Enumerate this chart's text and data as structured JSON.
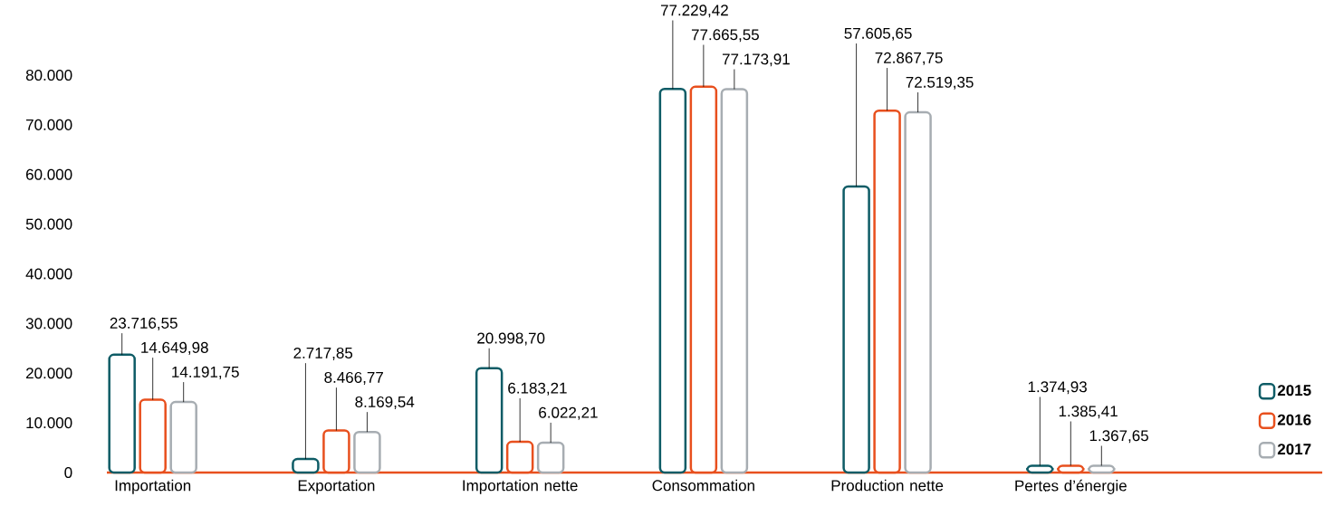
{
  "chart_data": {
    "type": "bar",
    "categories": [
      "Importation",
      "Exportation",
      "Importation nette",
      "Consommation",
      "Production nette",
      "Pertes d’énergie"
    ],
    "series": [
      {
        "name": "2015",
        "color": "#0e5c66",
        "values": [
          23716.55,
          2717.85,
          20998.7,
          77229.42,
          57605.65,
          1374.93
        ],
        "value_labels": [
          "23.716,55",
          "2.717,85",
          "20.998,70",
          "77.229,42",
          "57.605,65",
          "1.374,93"
        ]
      },
      {
        "name": "2016",
        "color": "#e8501e",
        "values": [
          14649.98,
          8466.77,
          6183.21,
          77665.55,
          72867.75,
          1385.41
        ],
        "value_labels": [
          "14.649,98",
          "8.466,77",
          "6.183,21",
          "77.665,55",
          "72.867,75",
          "1.385,41"
        ]
      },
      {
        "name": "2017",
        "color": "#a7adb2",
        "values": [
          14191.75,
          8169.54,
          6022.21,
          77173.91,
          72519.35,
          1367.65
        ],
        "value_labels": [
          "14.191,75",
          "8.169,54",
          "6.022,21",
          "77.173,91",
          "72.519,35",
          "1.367,65"
        ]
      }
    ],
    "ylim": [
      0,
      80000
    ],
    "yticks": [
      0,
      {
        "value": 10000,
        "label": "10.000"
      },
      {
        "value": 20000,
        "label": "20.000"
      },
      {
        "value": 30000,
        "label": "30.000"
      },
      {
        "value": 40000,
        "label": "40.000"
      },
      {
        "value": 50000,
        "label": "50.000"
      },
      {
        "value": 60000,
        "label": "60.000"
      },
      {
        "value": 70000,
        "label": "70.000"
      },
      {
        "value": 80000,
        "label": "80.000"
      }
    ],
    "legend": "bottom right"
  }
}
